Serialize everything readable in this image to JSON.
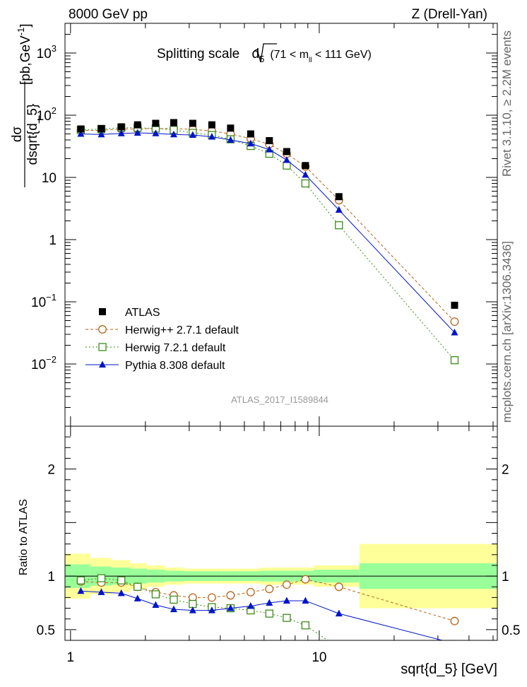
{
  "header": {
    "left": "8000 GeV pp",
    "right": "Z (Drell-Yan)"
  },
  "main_title": {
    "prefix": "Splitting scale",
    "var": "d",
    "var_sub": "5",
    "range_open": "(71 < m",
    "range_sub": "ll",
    "range_close": " < 111 GeV)"
  },
  "side_labels": {
    "rivet": "Rivet 3.1.10, ≥ 2.2M events",
    "mcplots": "mcplots.cern.ch [arXiv:1306.3436]"
  },
  "analysis_id": "ATLAS_2017_I1589844",
  "ylabel": {
    "numerator": "dσ",
    "denominator": "dsqrt{d_5}",
    "units_pre": " [pb,GeV",
    "units_exp": "-1",
    "units_post": "]"
  },
  "ratio_ylabel": "Ratio to ATLAS",
  "xlabel": "sqrt{d_5} [GeV]",
  "colors": {
    "atlas": "#000000",
    "herwig27": "#b5651d",
    "herwig72": "#3d8b1a",
    "pythia": "#0015c8",
    "band_inner": "#99ff99",
    "band_outer": "#ffff99"
  },
  "chart_data": [
    {
      "type": "scatter",
      "panel": "main",
      "xscale": "log",
      "yscale": "log",
      "xlim": [
        0.95,
        52
      ],
      "ylim": [
        0.001,
        3000
      ],
      "y_ticks": [
        {
          "v": 0.01,
          "base": "10",
          "exp": "−2"
        },
        {
          "v": 0.1,
          "base": "10",
          "exp": "−1"
        },
        {
          "v": 1,
          "base": "1",
          "exp": ""
        },
        {
          "v": 10,
          "base": "10",
          "exp": ""
        },
        {
          "v": 100,
          "base": "10",
          "exp": "2"
        },
        {
          "v": 1000,
          "base": "10",
          "exp": "3"
        }
      ],
      "legend_position": "lower-left",
      "series": [
        {
          "name": "ATLAS",
          "key": "atlas",
          "marker": "square-filled",
          "x": [
            1.1,
            1.33,
            1.6,
            1.86,
            2.2,
            2.6,
            3.1,
            3.7,
            4.4,
            5.3,
            6.3,
            7.4,
            8.8,
            12.0,
            35.0
          ],
          "y": [
            60,
            61,
            65,
            70,
            74,
            76,
            74,
            70,
            62,
            50,
            39,
            26,
            15.5,
            4.9,
            0.088
          ]
        },
        {
          "name": "Herwig++ 2.7.1 default",
          "key": "herwig27",
          "marker": "circle-open",
          "dash": "dashed",
          "x": [
            1.1,
            1.33,
            1.6,
            1.86,
            2.2,
            2.6,
            3.1,
            3.7,
            4.4,
            5.3,
            6.3,
            7.4,
            8.8,
            12.0,
            35.0
          ],
          "y": [
            57,
            57,
            60,
            60,
            61,
            61,
            59,
            56,
            50,
            42,
            34,
            24,
            15,
            4.3,
            0.048
          ]
        },
        {
          "name": "Herwig 7.2.1 default",
          "key": "herwig72",
          "marker": "square-open",
          "dash": "dotted",
          "x": [
            1.1,
            1.33,
            1.6,
            1.86,
            2.2,
            2.6,
            3.1,
            3.7,
            4.4,
            5.3,
            6.3,
            7.4,
            8.8,
            12.0,
            35.0
          ],
          "y": [
            58,
            60,
            63,
            63,
            61,
            58,
            52,
            48,
            41,
            32,
            24,
            15.5,
            8.0,
            1.7,
            0.0115
          ]
        },
        {
          "name": "Pythia 8.308 default",
          "key": "pythia",
          "marker": "triangle-filled",
          "dash": "solid",
          "x": [
            1.1,
            1.33,
            1.6,
            1.86,
            2.2,
            2.6,
            3.1,
            3.7,
            4.4,
            5.3,
            6.3,
            7.4,
            8.8,
            12.0,
            35.0
          ],
          "y": [
            50,
            49,
            51,
            52,
            51,
            49,
            48,
            45,
            40,
            35,
            28,
            19,
            11,
            3.0,
            0.032
          ]
        }
      ]
    },
    {
      "type": "line",
      "panel": "ratio",
      "xscale": "log",
      "xlim": [
        0.95,
        52
      ],
      "ylim": [
        0.4,
        2.4
      ],
      "y_ticks": [
        {
          "v": 0.5,
          "label": "0.5"
        },
        {
          "v": 1,
          "label": "1"
        },
        {
          "v": 2,
          "label": "2"
        }
      ],
      "x_ticks": [
        {
          "v": 1,
          "label": "1"
        },
        {
          "v": 10,
          "label": "10"
        }
      ],
      "bands": {
        "edges": [
          0.95,
          1.2,
          1.46,
          1.74,
          2.03,
          2.4,
          2.85,
          3.4,
          4.05,
          4.8,
          5.8,
          6.85,
          8.0,
          9.5,
          14.5,
          52
        ],
        "inner": [
          0.11,
          0.09,
          0.08,
          0.07,
          0.06,
          0.05,
          0.045,
          0.045,
          0.045,
          0.045,
          0.05,
          0.05,
          0.05,
          0.06,
          0.12
        ],
        "outer": [
          0.21,
          0.17,
          0.15,
          0.12,
          0.1,
          0.08,
          0.07,
          0.07,
          0.07,
          0.07,
          0.08,
          0.08,
          0.08,
          0.1,
          0.3
        ]
      },
      "series": [
        {
          "name": "Herwig++ 2.7.1 default",
          "key": "herwig27",
          "marker": "circle-open",
          "dash": "dashed",
          "x": [
            1.1,
            1.33,
            1.6,
            1.86,
            2.2,
            2.6,
            3.1,
            3.7,
            4.4,
            5.3,
            6.3,
            7.4,
            8.8,
            12.0,
            35.0
          ],
          "y": [
            0.95,
            0.94,
            0.94,
            0.9,
            0.85,
            0.82,
            0.8,
            0.8,
            0.82,
            0.85,
            0.88,
            0.92,
            0.97,
            0.9,
            0.58
          ]
        },
        {
          "name": "Herwig 7.2.1 default",
          "key": "herwig72",
          "marker": "square-open",
          "dash": "dotted",
          "x": [
            1.1,
            1.33,
            1.6,
            1.86,
            2.2,
            2.6,
            3.1,
            3.7,
            4.4,
            5.3,
            6.3,
            7.4,
            8.8,
            12.0
          ],
          "y": [
            0.96,
            0.98,
            0.96,
            0.9,
            0.83,
            0.78,
            0.74,
            0.71,
            0.7,
            0.68,
            0.65,
            0.61,
            0.54,
            0.33
          ]
        },
        {
          "name": "Pythia 8.308 default",
          "key": "pythia",
          "marker": "triangle-filled",
          "dash": "solid",
          "x": [
            1.1,
            1.33,
            1.6,
            1.86,
            2.2,
            2.6,
            3.1,
            3.7,
            4.4,
            5.3,
            6.3,
            7.4,
            8.8,
            12.0,
            35.0
          ],
          "y": [
            0.86,
            0.85,
            0.84,
            0.79,
            0.73,
            0.69,
            0.68,
            0.68,
            0.7,
            0.72,
            0.75,
            0.77,
            0.77,
            0.65,
            0.37
          ]
        }
      ]
    }
  ]
}
